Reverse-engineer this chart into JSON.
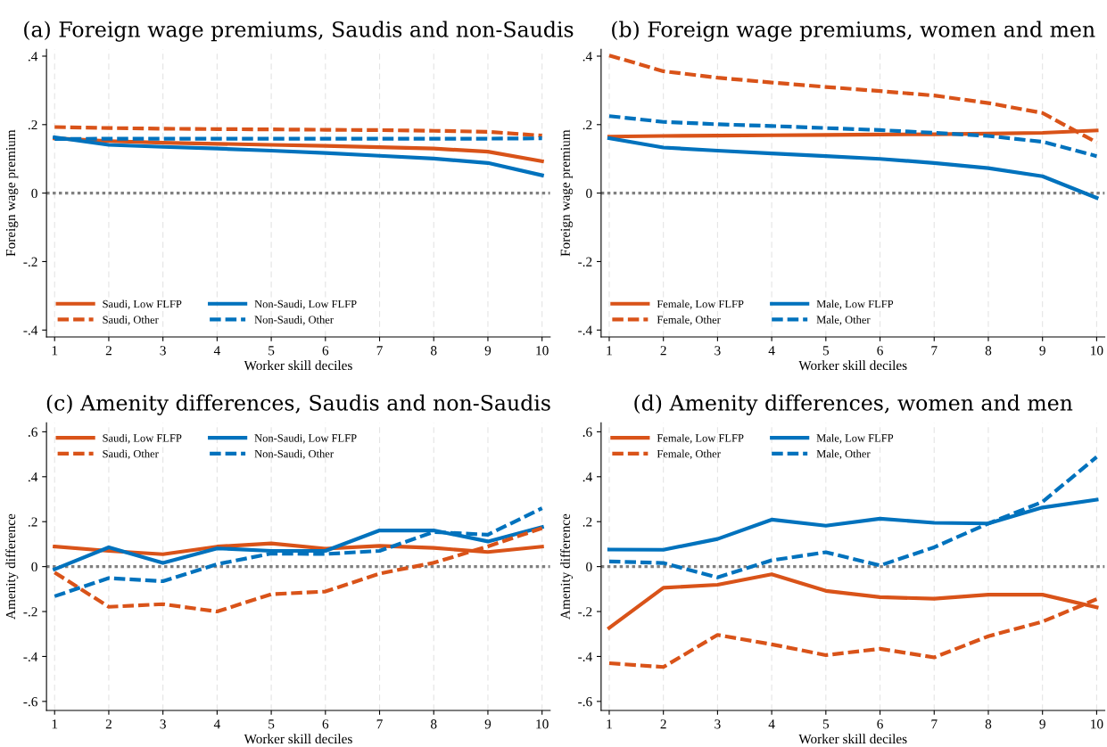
{
  "chart_data": [
    {
      "type": "line",
      "title": "(a) Foreign wage premiums, Saudis and non-Saudis",
      "xlabel": "Worker skill deciles",
      "ylabel": "Foreign wage premium",
      "x": [
        1,
        2,
        3,
        4,
        5,
        6,
        7,
        8,
        9,
        10
      ],
      "xlim": [
        0.85,
        10.15
      ],
      "xticks": [
        1,
        2,
        3,
        4,
        5,
        6,
        7,
        8,
        9,
        10
      ],
      "ylim": [
        -0.42,
        0.42
      ],
      "yticks": [
        {
          "value": -0.4,
          "label": "-.4"
        },
        {
          "value": -0.2,
          "label": "-.2"
        },
        {
          "value": 0,
          "label": "0"
        },
        {
          "value": 0.2,
          "label": ".2"
        },
        {
          "value": 0.4,
          "label": ".4"
        }
      ],
      "grid": "x",
      "legend": "bottom left",
      "marker": "none",
      "ref_lines": [
        {
          "axis": "y",
          "value": 0,
          "color": "#808080",
          "line_style": "dotted"
        }
      ],
      "series": [
        {
          "name": "Saudi, Low FLFP",
          "color": "#d95319",
          "line_style": "solid",
          "values": [
            0.16,
            0.152,
            0.147,
            0.144,
            0.141,
            0.138,
            0.134,
            0.13,
            0.121,
            0.093
          ]
        },
        {
          "name": "Non-Saudi, Low FLFP",
          "color": "#0072bd",
          "line_style": "solid",
          "values": [
            0.163,
            0.141,
            0.135,
            0.13,
            0.124,
            0.117,
            0.109,
            0.101,
            0.088,
            0.052
          ]
        },
        {
          "name": "Saudi, Other",
          "color": "#d95319",
          "line_style": "dashed",
          "values": [
            0.193,
            0.19,
            0.188,
            0.187,
            0.186,
            0.185,
            0.184,
            0.182,
            0.179,
            0.168
          ]
        },
        {
          "name": "Non-Saudi, Other",
          "color": "#0072bd",
          "line_style": "dashed",
          "values": [
            0.158,
            0.159,
            0.159,
            0.159,
            0.159,
            0.159,
            0.159,
            0.159,
            0.159,
            0.16
          ]
        }
      ]
    },
    {
      "type": "line",
      "title": "(b) Foreign wage premiums, women and men",
      "xlabel": "Worker skill deciles",
      "ylabel": "Foreign wage premium",
      "x": [
        1,
        2,
        3,
        4,
        5,
        6,
        7,
        8,
        9,
        10
      ],
      "xlim": [
        0.85,
        10.15
      ],
      "xticks": [
        1,
        2,
        3,
        4,
        5,
        6,
        7,
        8,
        9,
        10
      ],
      "ylim": [
        -0.42,
        0.42
      ],
      "yticks": [
        {
          "value": -0.4,
          "label": "-.4"
        },
        {
          "value": -0.2,
          "label": "-.2"
        },
        {
          "value": 0,
          "label": "0"
        },
        {
          "value": 0.2,
          "label": ".2"
        },
        {
          "value": 0.4,
          "label": ".4"
        }
      ],
      "grid": "x",
      "legend": "bottom left",
      "marker": "none",
      "ref_lines": [
        {
          "axis": "y",
          "value": 0,
          "color": "#808080",
          "line_style": "dotted"
        }
      ],
      "series": [
        {
          "name": "Female, Low FLFP",
          "color": "#d95319",
          "line_style": "solid",
          "values": [
            0.165,
            0.167,
            0.168,
            0.169,
            0.17,
            0.171,
            0.172,
            0.174,
            0.176,
            0.183
          ]
        },
        {
          "name": "Male, Low FLFP",
          "color": "#0072bd",
          "line_style": "solid",
          "values": [
            0.16,
            0.133,
            0.124,
            0.116,
            0.108,
            0.1,
            0.088,
            0.073,
            0.049,
            -0.014
          ]
        },
        {
          "name": "Female, Other",
          "color": "#d95319",
          "line_style": "dashed",
          "values": [
            0.402,
            0.356,
            0.337,
            0.323,
            0.31,
            0.298,
            0.285,
            0.263,
            0.234,
            0.148
          ]
        },
        {
          "name": "Male, Other",
          "color": "#0072bd",
          "line_style": "dashed",
          "values": [
            0.225,
            0.208,
            0.201,
            0.196,
            0.19,
            0.184,
            0.176,
            0.167,
            0.15,
            0.108
          ]
        }
      ]
    },
    {
      "type": "line",
      "title": "(c) Amenity differences, Saudis and non-Saudis",
      "xlabel": "Worker skill deciles",
      "ylabel": "Amenity difference",
      "x": [
        1,
        2,
        3,
        4,
        5,
        6,
        7,
        8,
        9,
        10
      ],
      "xlim": [
        0.85,
        10.15
      ],
      "xticks": [
        1,
        2,
        3,
        4,
        5,
        6,
        7,
        8,
        9,
        10
      ],
      "ylim": [
        -0.64,
        0.64
      ],
      "yticks": [
        {
          "value": -0.6,
          "label": "-.6"
        },
        {
          "value": -0.4,
          "label": "-.4"
        },
        {
          "value": -0.2,
          "label": "-.2"
        },
        {
          "value": 0,
          "label": "0"
        },
        {
          "value": 0.2,
          "label": ".2"
        },
        {
          "value": 0.4,
          "label": ".4"
        },
        {
          "value": 0.6,
          "label": ".6"
        }
      ],
      "grid": "x",
      "legend": "top left",
      "marker": "none",
      "ref_lines": [
        {
          "axis": "y",
          "value": 0,
          "color": "#808080",
          "line_style": "dotted"
        }
      ],
      "series": [
        {
          "name": "Saudi, Low FLFP",
          "color": "#d95319",
          "line_style": "solid",
          "values": [
            0.089,
            0.07,
            0.055,
            0.089,
            0.103,
            0.08,
            0.092,
            0.083,
            0.065,
            0.089
          ]
        },
        {
          "name": "Non-Saudi, Low FLFP",
          "color": "#0072bd",
          "line_style": "solid",
          "values": [
            -0.012,
            0.086,
            0.016,
            0.081,
            0.07,
            0.07,
            0.161,
            0.161,
            0.112,
            0.176
          ]
        },
        {
          "name": "Saudi, Other",
          "color": "#d95319",
          "line_style": "dashed",
          "values": [
            -0.026,
            -0.179,
            -0.167,
            -0.2,
            -0.123,
            -0.111,
            -0.031,
            0.017,
            0.09,
            0.171
          ]
        },
        {
          "name": "Non-Saudi, Other",
          "color": "#0072bd",
          "line_style": "dashed",
          "values": [
            -0.132,
            -0.051,
            -0.065,
            0.011,
            0.058,
            0.056,
            0.07,
            0.154,
            0.142,
            0.26
          ]
        }
      ]
    },
    {
      "type": "line",
      "title": "(d) Amenity differences, women and men",
      "xlabel": "Worker skill deciles",
      "ylabel": "Amenity difference",
      "x": [
        1,
        2,
        3,
        4,
        5,
        6,
        7,
        8,
        9,
        10
      ],
      "xlim": [
        0.85,
        10.15
      ],
      "xticks": [
        1,
        2,
        3,
        4,
        5,
        6,
        7,
        8,
        9,
        10
      ],
      "ylim": [
        -0.64,
        0.64
      ],
      "yticks": [
        {
          "value": -0.6,
          "label": "-.6"
        },
        {
          "value": -0.4,
          "label": "-.4"
        },
        {
          "value": -0.2,
          "label": "-.2"
        },
        {
          "value": 0,
          "label": "0"
        },
        {
          "value": 0.2,
          "label": ".2"
        },
        {
          "value": 0.4,
          "label": ".4"
        },
        {
          "value": 0.6,
          "label": ".6"
        }
      ],
      "grid": "x",
      "legend": "top left",
      "marker": "none",
      "ref_lines": [
        {
          "axis": "y",
          "value": 0,
          "color": "#808080",
          "line_style": "dotted"
        }
      ],
      "series": [
        {
          "name": "Female, Low FLFP",
          "color": "#d95319",
          "line_style": "solid",
          "values": [
            -0.273,
            -0.094,
            -0.081,
            -0.034,
            -0.108,
            -0.136,
            -0.143,
            -0.125,
            -0.125,
            -0.181
          ]
        },
        {
          "name": "Male, Low FLFP",
          "color": "#0072bd",
          "line_style": "solid",
          "values": [
            0.076,
            0.075,
            0.123,
            0.209,
            0.182,
            0.213,
            0.195,
            0.192,
            0.263,
            0.298
          ]
        },
        {
          "name": "Female, Other",
          "color": "#d95319",
          "line_style": "dashed",
          "values": [
            -0.43,
            -0.447,
            -0.304,
            -0.346,
            -0.394,
            -0.366,
            -0.404,
            -0.31,
            -0.245,
            -0.145
          ]
        },
        {
          "name": "Male, Other",
          "color": "#0072bd",
          "line_style": "dashed",
          "values": [
            0.023,
            0.016,
            -0.048,
            0.028,
            0.064,
            0.005,
            0.086,
            0.192,
            0.288,
            0.488
          ]
        }
      ]
    }
  ]
}
